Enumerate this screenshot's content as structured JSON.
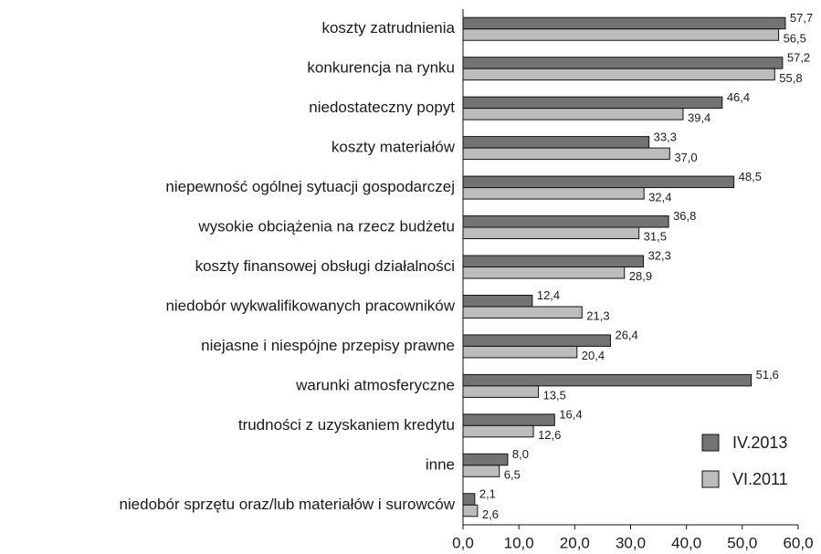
{
  "chart_data": {
    "type": "hbar",
    "categories": [
      "koszty zatrudnienia",
      "konkurencja na rynku",
      "niedostateczny popyt",
      "koszty materiałów",
      "niepewność ogólnej sytuacji gospodarczej",
      "wysokie obciążenia na rzecz budżetu",
      "koszty finansowej obsługi działalności",
      "niedobór wykwalifikowanych pracowników",
      "niejasne i niespójne przepisy prawne",
      "warunki atmosferyczne",
      "trudności z uzyskaniem kredytu",
      "inne",
      "niedobór sprzętu oraz/lub materiałów i surowców"
    ],
    "series": [
      {
        "name": "IV.2013",
        "color": "#737373",
        "values": [
          57.7,
          57.2,
          46.4,
          33.3,
          48.5,
          36.8,
          32.3,
          12.4,
          26.4,
          51.6,
          16.4,
          8.0,
          2.1
        ],
        "value_labels": [
          "57,7",
          "57,2",
          "46,4",
          "33,3",
          "48,5",
          "36,8",
          "32,3",
          "12,4",
          "26,4",
          "51,6",
          "16,4",
          "8,0",
          "2,1"
        ]
      },
      {
        "name": "VI.2011",
        "color": "#bcbcbc",
        "values": [
          56.5,
          55.8,
          39.4,
          37.0,
          32.4,
          31.5,
          28.9,
          21.3,
          20.4,
          13.5,
          12.6,
          6.5,
          2.6
        ],
        "value_labels": [
          "56,5",
          "55,8",
          "39,4",
          "37,0",
          "32,4",
          "31,5",
          "28,9",
          "21,3",
          "20,4",
          "13,5",
          "12,6",
          "6,5",
          "2,6"
        ]
      }
    ],
    "xlim": [
      0,
      60
    ],
    "xticks": [
      {
        "value": 0,
        "label": "0,0"
      },
      {
        "value": 10,
        "label": "10,0"
      },
      {
        "value": 20,
        "label": "20,0"
      },
      {
        "value": 30,
        "label": "30,0"
      },
      {
        "value": 40,
        "label": "40,0"
      },
      {
        "value": 50,
        "label": "50,0"
      },
      {
        "value": 60,
        "label": "60,0"
      }
    ],
    "legend": "lower right"
  }
}
